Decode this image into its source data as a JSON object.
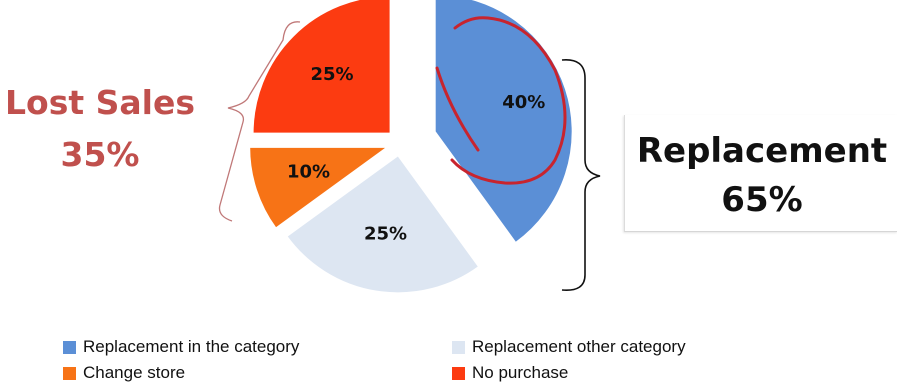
{
  "chart_data": {
    "type": "pie",
    "categories": [
      "Replacement in the category",
      "Replacement other category",
      "Change store",
      "No purchase"
    ],
    "values": [
      40,
      25,
      10,
      25
    ],
    "value_labels": [
      "40%",
      "25%",
      "10%",
      "25%"
    ],
    "colors": [
      "#5b8fd6",
      "#dde6f2",
      "#f77316",
      "#fc3b11"
    ],
    "exploded": true,
    "legend_position": "bottom",
    "annotations": {
      "lost_sales": {
        "title": "Lost Sales",
        "value": "35%"
      },
      "replacement": {
        "title": "Replacement",
        "value": "65%"
      }
    }
  }
}
